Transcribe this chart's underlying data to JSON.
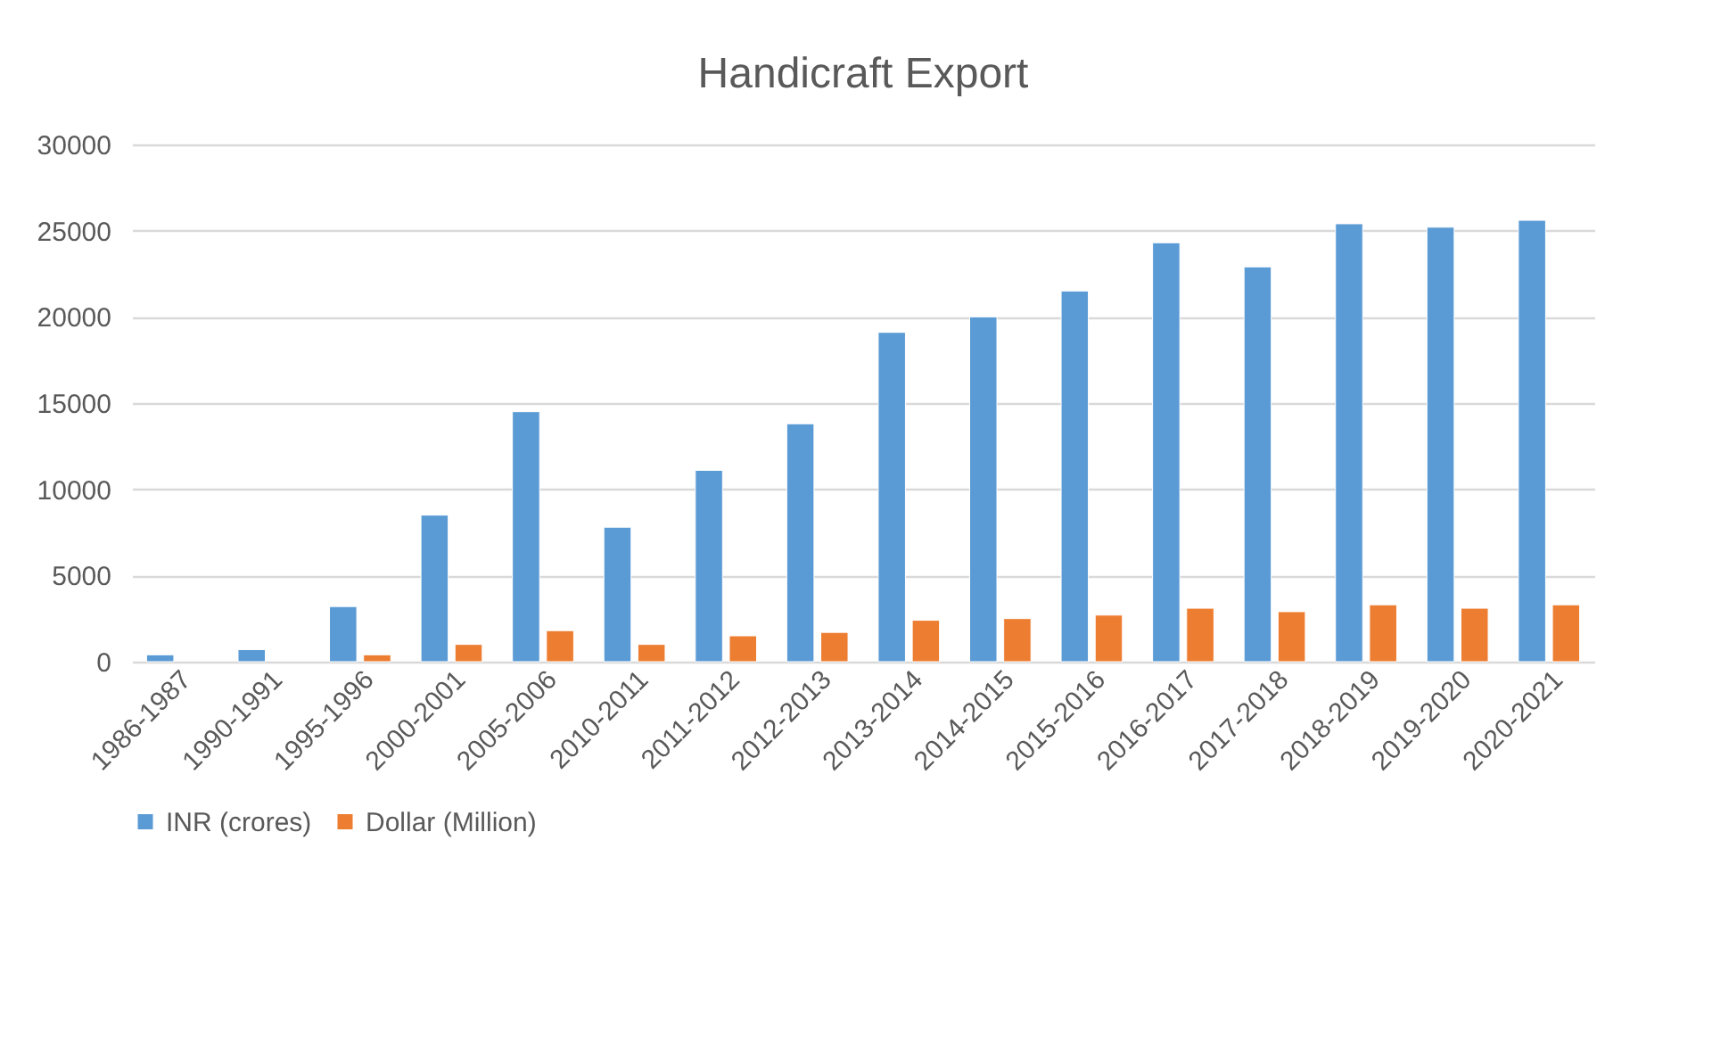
{
  "chart_data": {
    "type": "bar",
    "title": "Handicraft Export",
    "categories": [
      "1986-1987",
      "1990-1991",
      "1995-1996",
      "2000-2001",
      "2005-2006",
      "2010-2011",
      "2011-2012",
      "2012-2013",
      "2013-2014",
      "2014-2015",
      "2015-2016",
      "2016-2017",
      "2017-2018",
      "2018-2019",
      "2019-2020",
      "2020-2021"
    ],
    "series": [
      {
        "name": "INR (crores)",
        "color": "#5b9bd5",
        "values": [
          400,
          700,
          3200,
          8500,
          14500,
          7800,
          11100,
          13800,
          19100,
          20000,
          21500,
          24300,
          22900,
          25400,
          25200,
          25600
        ]
      },
      {
        "name": "Dollar (Million)",
        "color": "#ed7d31",
        "values": [
          null,
          null,
          400,
          1000,
          1800,
          1000,
          1500,
          1700,
          2400,
          2500,
          2700,
          3100,
          2900,
          3300,
          3100,
          3300
        ]
      }
    ],
    "ylim": [
      0,
      30000
    ],
    "yticks": [
      0,
      5000,
      10000,
      15000,
      20000,
      25000,
      30000
    ],
    "grid": "y",
    "legend": "bottom"
  }
}
